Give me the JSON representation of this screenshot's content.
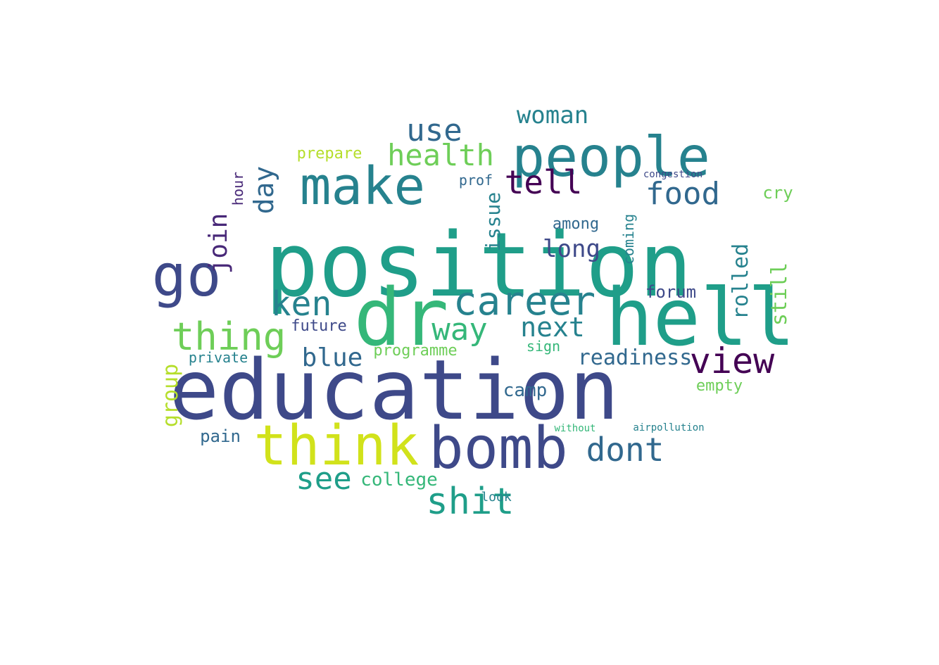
{
  "cloud": {
    "palette": [
      "#440154",
      "#482878",
      "#3e4989",
      "#31688e",
      "#26828e",
      "#1f9e89",
      "#35b779",
      "#6ece58",
      "#b5de2b",
      "#fde725"
    ],
    "words": [
      {
        "t": "position",
        "c": "#1f9e89"
      },
      {
        "t": "education",
        "c": "#3e4989"
      },
      {
        "t": "hell",
        "c": "#1f9e89"
      },
      {
        "t": "people",
        "c": "#26828e"
      },
      {
        "t": "dr",
        "c": "#35b779"
      },
      {
        "t": "bomb",
        "c": "#3e4989"
      },
      {
        "t": "think",
        "c": "#d1e21b"
      },
      {
        "t": "make",
        "c": "#26828e"
      },
      {
        "t": "go",
        "c": "#3e4989"
      },
      {
        "t": "career",
        "c": "#26828e"
      },
      {
        "t": "view",
        "c": "#440154"
      },
      {
        "t": "shit",
        "c": "#1f9e89"
      },
      {
        "t": "thing",
        "c": "#6ece58"
      },
      {
        "t": "ken",
        "c": "#26828e"
      },
      {
        "t": "dont",
        "c": "#31688e"
      },
      {
        "t": "way",
        "c": "#35b779"
      },
      {
        "t": "see",
        "c": "#1f9e89"
      },
      {
        "t": "food",
        "c": "#31688e"
      },
      {
        "t": "health",
        "c": "#6ece58"
      },
      {
        "t": "tell",
        "c": "#440154"
      },
      {
        "t": "use",
        "c": "#31688e"
      },
      {
        "t": "woman",
        "c": "#26828e"
      },
      {
        "t": "next",
        "c": "#26828e"
      },
      {
        "t": "long",
        "c": "#3e4989"
      },
      {
        "t": "day",
        "c": "#31688e"
      },
      {
        "t": "join",
        "c": "#482878"
      },
      {
        "t": "group",
        "c": "#b5de2b"
      },
      {
        "t": "blue",
        "c": "#31688e"
      },
      {
        "t": "readiness",
        "c": "#31688e"
      },
      {
        "t": "rolled",
        "c": "#26828e"
      },
      {
        "t": "still",
        "c": "#6ece58"
      },
      {
        "t": "issue",
        "c": "#26828e"
      },
      {
        "t": "college",
        "c": "#35b779"
      },
      {
        "t": "camp",
        "c": "#31688e"
      },
      {
        "t": "forum",
        "c": "#3e4989"
      },
      {
        "t": "programme",
        "c": "#6ece58"
      },
      {
        "t": "future",
        "c": "#3e4989"
      },
      {
        "t": "pain",
        "c": "#31688e"
      },
      {
        "t": "prepare",
        "c": "#b5de2b"
      },
      {
        "t": "empty",
        "c": "#6ece58"
      },
      {
        "t": "among",
        "c": "#31688e"
      },
      {
        "t": "cry",
        "c": "#6ece58"
      },
      {
        "t": "private",
        "c": "#26828e"
      },
      {
        "t": "coming",
        "c": "#26828e"
      },
      {
        "t": "sign",
        "c": "#35b779"
      },
      {
        "t": "prof",
        "c": "#31688e"
      },
      {
        "t": "look",
        "c": "#26828e"
      },
      {
        "t": "hour",
        "c": "#482878"
      },
      {
        "t": "congestion",
        "c": "#3e4989"
      },
      {
        "t": "airpollution",
        "c": "#26828e"
      },
      {
        "t": "without",
        "c": "#35b779"
      }
    ]
  }
}
